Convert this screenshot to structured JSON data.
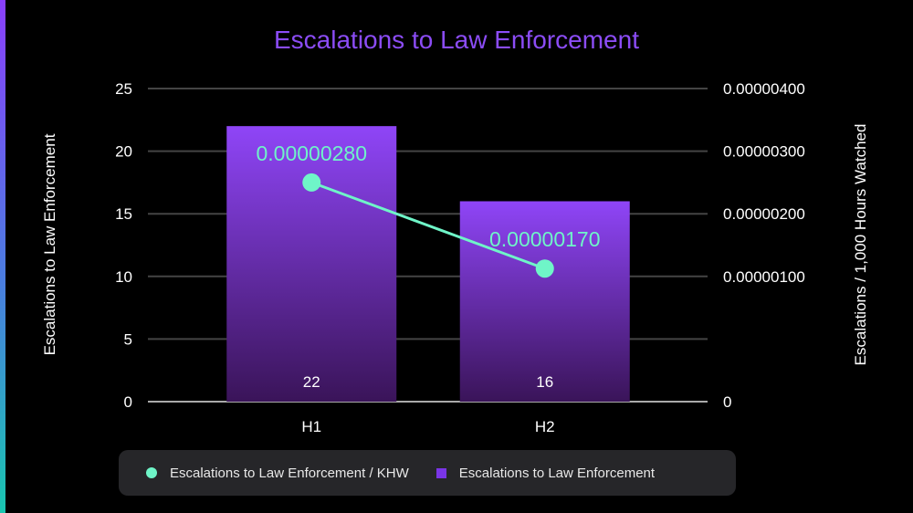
{
  "chart_data": {
    "type": "bar",
    "title": "Escalations to Law Enforcement",
    "categories": [
      "H1",
      "H2"
    ],
    "series": [
      {
        "name": "Escalations to Law Enforcement",
        "type": "bar",
        "axis": "left",
        "values": [
          22,
          16
        ],
        "labels": [
          "22",
          "16"
        ],
        "color": "#8f45f7"
      },
      {
        "name": "Escalations to Law Enforcement / KHW",
        "type": "line",
        "axis": "right",
        "values": [
          2.8e-06,
          1.7e-06
        ],
        "labels": [
          "0.00000280",
          "0.00000170"
        ],
        "color": "#6ff5c8"
      }
    ],
    "ylabel": "Escalations to Law Enforcement",
    "ylim": [
      0,
      25
    ],
    "yticks": [
      "0",
      "5",
      "10",
      "15",
      "20",
      "25"
    ],
    "y2label": "Escalations / 1,000 Hours Watched",
    "y2lim": [
      0,
      4e-06
    ],
    "y2ticks": [
      "0",
      "0.00000100",
      "0.00000200",
      "0.00000300",
      "0.00000400"
    ],
    "grid": true,
    "legend": "bottom",
    "title_color": "#8b4cf5"
  }
}
